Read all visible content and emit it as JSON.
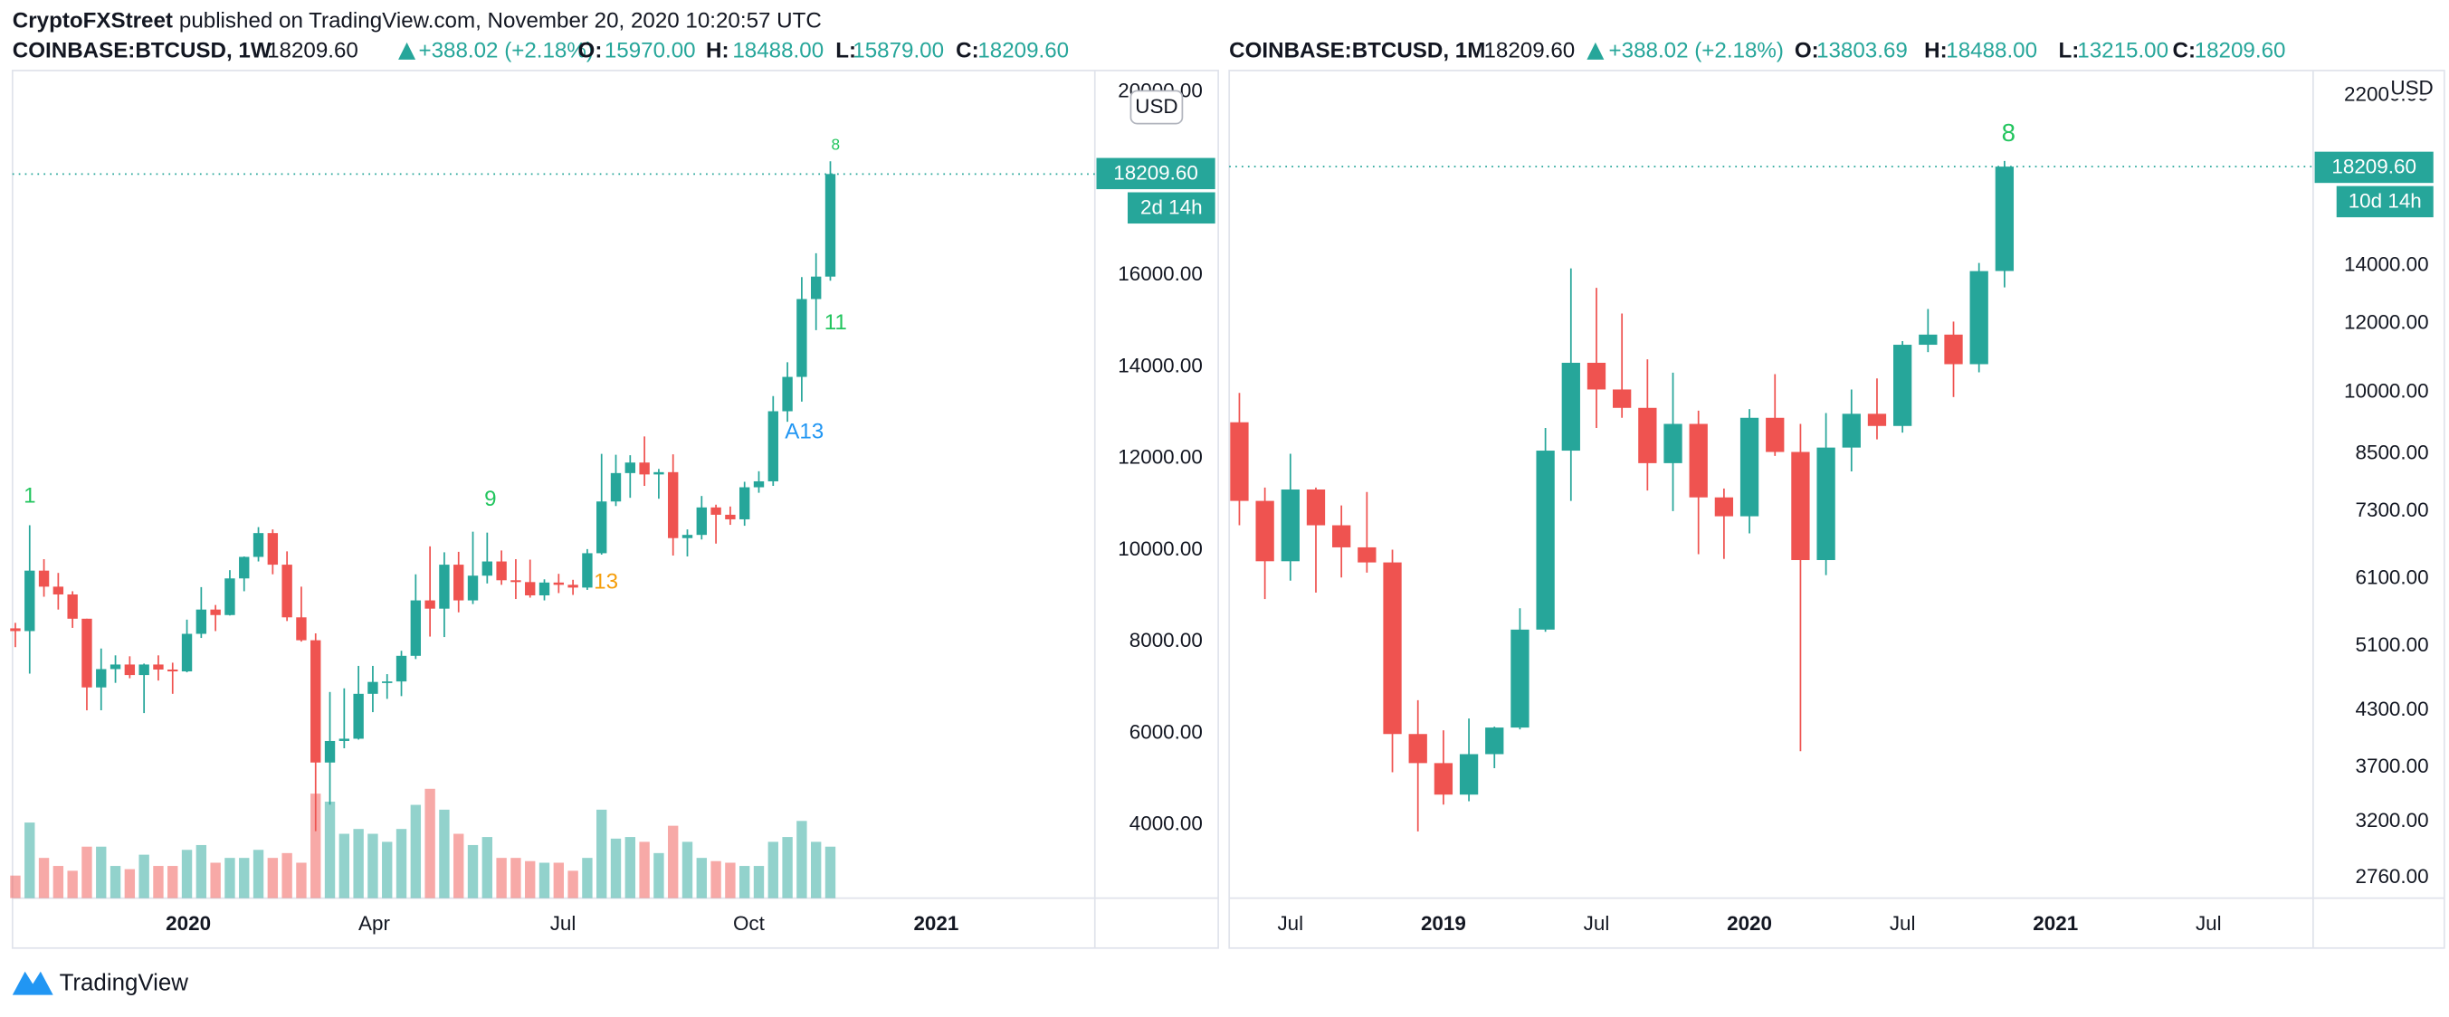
{
  "header": {
    "publisher": "CryptoFXStreet",
    "published": "published on TradingView.com, November 20, 2020 10:20:57 UTC"
  },
  "footer": {
    "brand": "TradingView"
  },
  "chart_data": [
    {
      "type": "candlestick",
      "symbol": "COINBASE:BTCUSD, 1W",
      "last": "18209.60",
      "change": "+388.02 (+2.18%)",
      "ohlc_labels": [
        {
          "key": "O:",
          "value": "15970.00"
        },
        {
          "key": "H:",
          "value": "18488.00"
        },
        {
          "key": "L:",
          "value": "15879.00"
        },
        {
          "key": "C:",
          "value": "18209.60"
        }
      ],
      "currency": "USD",
      "countdown": "2d 14h",
      "log_scale": false,
      "up_color": "#26a69a",
      "down_color": "#ef5350",
      "xlim": [
        -0.2,
        75.5
      ],
      "xticks": [
        {
          "value": 12.1,
          "label": "2020"
        },
        {
          "value": 25.1,
          "label": "Apr"
        },
        {
          "value": 38.3,
          "label": "Jul"
        },
        {
          "value": 51.3,
          "label": "Oct"
        },
        {
          "value": 64.4,
          "label": "2021"
        }
      ],
      "ylim": [
        2400,
        20470
      ],
      "yticks": [
        {
          "value": 4000,
          "label": "4000.00"
        },
        {
          "value": 6000,
          "label": "6000.00"
        },
        {
          "value": 8000,
          "label": "8000.00"
        },
        {
          "value": 10000,
          "label": "10000.00"
        },
        {
          "value": 12000,
          "label": "12000.00"
        },
        {
          "value": 14000,
          "label": "14000.00"
        },
        {
          "value": 16000,
          "label": "16000.00"
        },
        {
          "value": 20000,
          "label": "20000.00"
        }
      ],
      "open": [
        8290,
        8230,
        9550,
        9200,
        9030,
        8500,
        7000,
        7400,
        7500,
        7270,
        7500,
        7390,
        7350,
        8170,
        8700,
        8580,
        9380,
        9850,
        10370,
        9680,
        8530,
        8030,
        5360,
        5830,
        5880,
        6860,
        7120,
        7130,
        7690,
        8900,
        8720,
        9680,
        8900,
        9440,
        9750,
        9340,
        9300,
        9010,
        9290,
        9240,
        9180,
        9930,
        11060,
        11680,
        11910,
        11650,
        11700,
        10260,
        10330,
        10930,
        10770,
        10670,
        11370,
        11500,
        13030,
        13780,
        15480,
        15970
      ],
      "high": [
        8410,
        10540,
        9800,
        9500,
        9100,
        8500,
        7850,
        7700,
        7680,
        7520,
        7700,
        7540,
        8480,
        9190,
        8800,
        9560,
        9860,
        10500,
        10450,
        9970,
        9200,
        8180,
        6900,
        6980,
        7470,
        7470,
        7290,
        7800,
        9470,
        10080,
        9950,
        9960,
        10400,
        10380,
        9990,
        9800,
        9790,
        9360,
        9480,
        9350,
        10020,
        12100,
        12080,
        12070,
        12480,
        11770,
        12090,
        10450,
        11180,
        10990,
        10950,
        11490,
        11720,
        13360,
        14100,
        15960,
        16480,
        18488
      ],
      "low": [
        7880,
        7300,
        8980,
        8700,
        8300,
        6500,
        6500,
        7100,
        7200,
        6440,
        7150,
        6860,
        7330,
        8080,
        8230,
        8570,
        9100,
        9750,
        9470,
        8450,
        8000,
        3860,
        4440,
        5670,
        5860,
        6460,
        6750,
        6810,
        7620,
        8110,
        8100,
        8640,
        8820,
        9270,
        9240,
        8930,
        8960,
        8900,
        9060,
        9020,
        9130,
        9900,
        10960,
        11140,
        11400,
        11120,
        9880,
        9860,
        10230,
        10140,
        10550,
        10530,
        11250,
        11400,
        12800,
        13240,
        14800,
        15879
      ],
      "close": [
        8230,
        9550,
        9200,
        9030,
        8500,
        7000,
        7400,
        7500,
        7270,
        7500,
        7390,
        7350,
        8170,
        8700,
        8580,
        9380,
        9850,
        10370,
        9680,
        8530,
        8030,
        5360,
        5830,
        5880,
        6860,
        7120,
        7130,
        7690,
        8900,
        8720,
        9680,
        8900,
        9440,
        9750,
        9340,
        9300,
        9010,
        9290,
        9240,
        9180,
        9930,
        11060,
        11680,
        11910,
        11650,
        11700,
        10260,
        10330,
        10930,
        10770,
        10670,
        11370,
        11500,
        13030,
        13780,
        15480,
        15970,
        18209.6
      ],
      "volume": [
        14,
        47,
        25,
        20,
        17,
        32,
        32,
        20,
        18,
        27,
        20,
        20,
        30,
        33,
        22,
        25,
        25,
        30,
        25,
        28,
        22,
        65,
        60,
        40,
        43,
        40,
        35,
        43,
        58,
        68,
        55,
        40,
        33,
        38,
        25,
        25,
        23,
        22,
        22,
        17,
        25,
        55,
        37,
        38,
        35,
        28,
        45,
        35,
        25,
        23,
        22,
        20,
        20,
        35,
        38,
        48,
        35,
        32
      ],
      "annotations": [
        {
          "text": "1",
          "color": "#22c55e"
        },
        {
          "text": "9",
          "color": "#22c55e"
        },
        {
          "text": "13",
          "color": "#f59e0b"
        },
        {
          "text": "A13",
          "color": "#2196f3"
        },
        {
          "text": "11",
          "color": "#22c55e"
        },
        {
          "text": "8",
          "color": "#22c55e"
        }
      ]
    },
    {
      "type": "candlestick",
      "symbol": "COINBASE:BTCUSD, 1M",
      "last": "18209.60",
      "change": "+388.02 (+2.18%)",
      "ohlc_labels": [
        {
          "key": "O:",
          "value": "13803.69"
        },
        {
          "key": "H:",
          "value": "18488.00"
        },
        {
          "key": "L:",
          "value": "13215.00"
        },
        {
          "key": "C:",
          "value": "18209.60"
        }
      ],
      "currency": "USD",
      "countdown": "10d 14h",
      "log_scale": true,
      "up_color": "#26a69a",
      "down_color": "#ef5350",
      "xlim": [
        -0.4,
        42.1
      ],
      "xticks": [
        {
          "value": 2,
          "label": "Jul"
        },
        {
          "value": 8,
          "label": "2019"
        },
        {
          "value": 14,
          "label": "Jul"
        },
        {
          "value": 20,
          "label": "2020"
        },
        {
          "value": 26,
          "label": "Jul"
        },
        {
          "value": 32,
          "label": "2021"
        },
        {
          "value": 38,
          "label": "Jul"
        }
      ],
      "ylim": [
        2614,
        23500
      ],
      "yticks": [
        {
          "value": 2760,
          "label": "2760.00"
        },
        {
          "value": 3200,
          "label": "3200.00"
        },
        {
          "value": 3700,
          "label": "3700.00"
        },
        {
          "value": 4300,
          "label": "4300.00"
        },
        {
          "value": 5100,
          "label": "5100.00"
        },
        {
          "value": 6100,
          "label": "6100.00"
        },
        {
          "value": 7300,
          "label": "7300.00"
        },
        {
          "value": 8500,
          "label": "8500.00"
        },
        {
          "value": 10000,
          "label": "10000.00"
        },
        {
          "value": 12000,
          "label": "12000.00"
        },
        {
          "value": 14000,
          "label": "14000.00"
        },
        {
          "value": 22000,
          "label": "22000.00"
        }
      ],
      "open": [
        9240,
        7500,
        6390,
        7730,
        7030,
        6630,
        6370,
        4040,
        3740,
        3440,
        3830,
        4110,
        5330,
        8570,
        10820,
        10080,
        9600,
        8290,
        9200,
        7570,
        7200,
        9350,
        8540,
        6410,
        8640,
        9450,
        9150,
        11350,
        11660,
        10780,
        13803.69
      ],
      "high": [
        9990,
        7770,
        8500,
        7770,
        7410,
        7680,
        6590,
        4420,
        4080,
        4210,
        4120,
        5640,
        9100,
        13900,
        13200,
        12330,
        10920,
        10540,
        9530,
        7750,
        9570,
        10500,
        9200,
        9470,
        10080,
        10380,
        11460,
        12480,
        12070,
        14100,
        18488
      ],
      "low": [
        7030,
        5780,
        6070,
        5880,
        6120,
        6200,
        3650,
        3120,
        3350,
        3380,
        3690,
        4090,
        5300,
        7500,
        9100,
        9350,
        7710,
        7300,
        6510,
        6430,
        6880,
        8450,
        3860,
        6160,
        8110,
        8830,
        8990,
        11130,
        9880,
        10550,
        13215
      ],
      "close": [
        7500,
        6390,
        7730,
        7030,
        6630,
        6370,
        4040,
        3740,
        3440,
        3830,
        4110,
        5330,
        8570,
        10820,
        10080,
        9600,
        8290,
        9200,
        7570,
        7200,
        9350,
        8540,
        6410,
        8640,
        9450,
        9150,
        11350,
        11660,
        10780,
        13800,
        18209.6
      ],
      "annotations": [
        {
          "text": "8",
          "color": "#22c55e"
        }
      ]
    }
  ]
}
